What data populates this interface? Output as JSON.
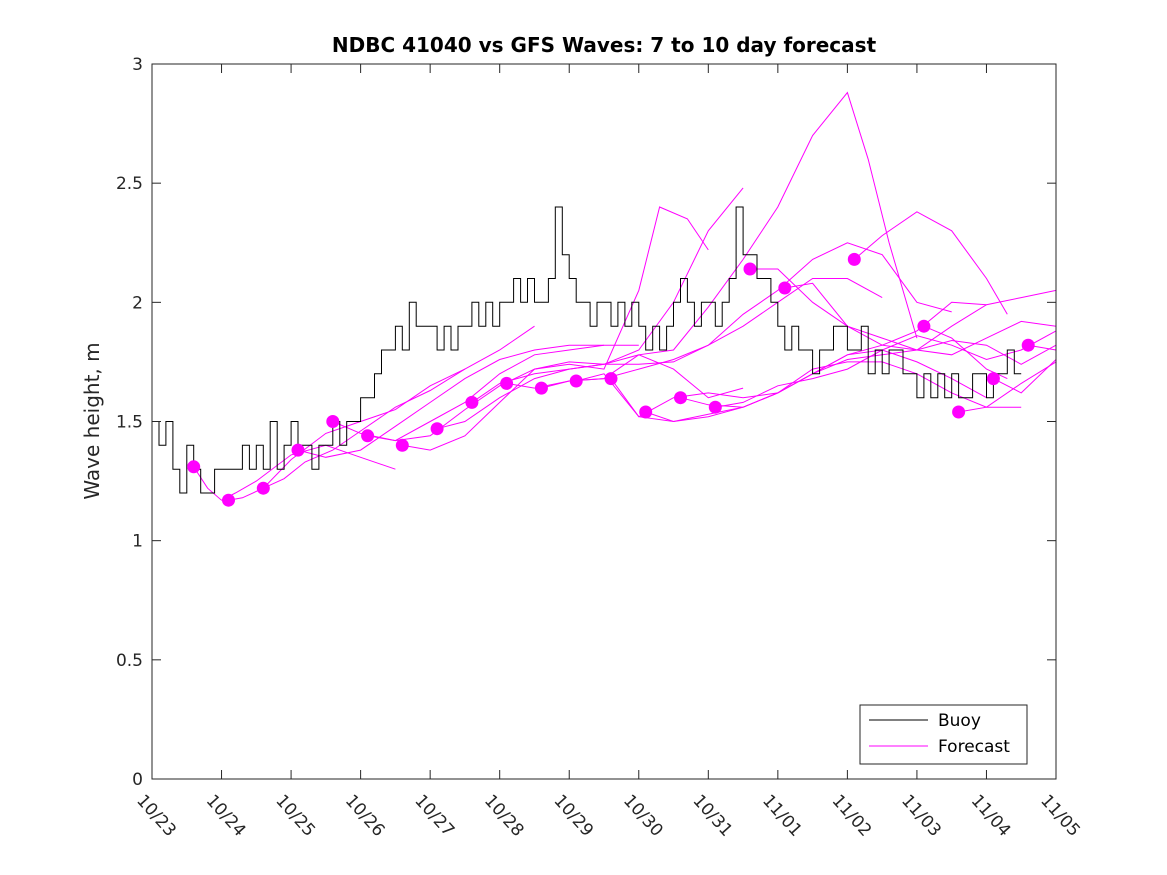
{
  "colors": {
    "buoy": "#000000",
    "forecast": "#ff00ff",
    "axes": "#262626",
    "background": "#ffffff"
  },
  "chart_data": {
    "type": "line",
    "title": "NDBC 41040 vs GFS Waves: 7 to 10 day forecast",
    "xlabel": "",
    "ylabel": "Wave height, m",
    "xlim": [
      0,
      13
    ],
    "ylim": [
      0,
      3
    ],
    "x_units": "days since 10/23",
    "xticks": [
      0,
      1,
      2,
      3,
      4,
      5,
      6,
      7,
      8,
      9,
      10,
      11,
      12,
      13
    ],
    "xtick_labels": [
      "10/23",
      "10/24",
      "10/25",
      "10/26",
      "10/27",
      "10/28",
      "10/29",
      "10/30",
      "10/31",
      "11/01",
      "11/02",
      "11/03",
      "11/04",
      "11/05"
    ],
    "yticks": [
      0,
      0.5,
      1,
      1.5,
      2,
      2.5,
      3
    ],
    "ytick_labels": [
      "0",
      "0.5",
      "1",
      "1.5",
      "2",
      "2.5",
      "3"
    ],
    "grid": false,
    "legend": {
      "location": "bottom-right",
      "entries": [
        "Buoy",
        "Forecast"
      ]
    },
    "series": [
      {
        "name": "Buoy",
        "style": "line",
        "x": [
          0,
          0.1,
          0.2,
          0.3,
          0.4,
          0.5,
          0.6,
          0.7,
          0.8,
          0.9,
          1.0,
          1.1,
          1.2,
          1.3,
          1.4,
          1.5,
          1.6,
          1.7,
          1.8,
          1.9,
          2.0,
          2.1,
          2.2,
          2.3,
          2.4,
          2.5,
          2.6,
          2.7,
          2.8,
          2.9,
          3.0,
          3.1,
          3.2,
          3.3,
          3.4,
          3.5,
          3.6,
          3.7,
          3.8,
          3.9,
          4.0,
          4.1,
          4.2,
          4.3,
          4.4,
          4.5,
          4.6,
          4.7,
          4.8,
          4.9,
          5.0,
          5.1,
          5.2,
          5.3,
          5.4,
          5.5,
          5.6,
          5.7,
          5.8,
          5.9,
          6.0,
          6.1,
          6.2,
          6.3,
          6.4,
          6.5,
          6.6,
          6.7,
          6.8,
          6.9,
          7.0,
          7.1,
          7.2,
          7.3,
          7.4,
          7.5,
          7.6,
          7.7,
          7.8,
          7.9,
          8.0,
          8.1,
          8.2,
          8.3,
          8.4,
          8.5,
          8.6,
          8.7,
          8.8,
          8.9,
          9.0,
          9.1,
          9.2,
          9.3,
          9.4,
          9.5,
          9.6,
          9.7,
          9.8,
          9.9,
          10.0,
          10.1,
          10.2,
          10.3,
          10.4,
          10.5,
          10.6,
          10.7,
          10.8,
          10.9,
          11.0,
          11.1,
          11.2,
          11.3,
          11.4,
          11.5,
          11.6,
          11.7,
          11.8,
          11.9,
          12.0,
          12.1,
          12.2,
          12.3,
          12.4,
          12.5
        ],
        "y": [
          1.5,
          1.5,
          1.4,
          1.5,
          1.3,
          1.2,
          1.4,
          1.3,
          1.2,
          1.2,
          1.3,
          1.3,
          1.3,
          1.3,
          1.4,
          1.3,
          1.4,
          1.3,
          1.5,
          1.3,
          1.4,
          1.5,
          1.4,
          1.4,
          1.3,
          1.4,
          1.4,
          1.5,
          1.4,
          1.5,
          1.5,
          1.6,
          1.6,
          1.7,
          1.8,
          1.8,
          1.9,
          1.8,
          2.0,
          1.9,
          1.9,
          1.9,
          1.8,
          1.9,
          1.8,
          1.9,
          1.9,
          2.0,
          1.9,
          2.0,
          1.9,
          2.0,
          2.0,
          2.1,
          2.0,
          2.1,
          2.0,
          2.0,
          2.1,
          2.4,
          2.2,
          2.1,
          2.0,
          2.0,
          1.9,
          2.0,
          2.0,
          1.9,
          2.0,
          1.9,
          2.0,
          1.9,
          1.8,
          1.9,
          1.8,
          1.9,
          2.0,
          2.1,
          2.0,
          1.9,
          2.0,
          2.0,
          1.9,
          2.0,
          2.1,
          2.4,
          2.2,
          2.2,
          2.1,
          2.1,
          2.0,
          1.9,
          1.8,
          1.9,
          1.8,
          1.8,
          1.7,
          1.8,
          1.8,
          1.9,
          1.9,
          1.8,
          1.8,
          1.9,
          1.7,
          1.8,
          1.7,
          1.8,
          1.8,
          1.7,
          1.7,
          1.6,
          1.7,
          1.6,
          1.7,
          1.6,
          1.7,
          1.6,
          1.6,
          1.7,
          1.7,
          1.6,
          1.7,
          1.7,
          1.8,
          1.7
        ]
      },
      {
        "name": "Forecast",
        "style": "line",
        "x": [
          0.6,
          0.8,
          1.0,
          1.2,
          1.5,
          2.0,
          2.5,
          3.0,
          3.5
        ],
        "y": [
          1.31,
          1.22,
          1.17,
          1.2,
          1.25,
          1.36,
          1.4,
          1.35,
          1.3
        ]
      },
      {
        "name": "Forecast",
        "style": "line",
        "x": [
          1.1,
          1.3,
          1.6,
          2.0,
          2.5,
          3.0,
          3.5,
          4.0,
          4.5
        ],
        "y": [
          1.17,
          1.18,
          1.22,
          1.34,
          1.45,
          1.5,
          1.55,
          1.65,
          1.72
        ]
      },
      {
        "name": "Forecast",
        "style": "line",
        "x": [
          1.6,
          1.9,
          2.2,
          2.6,
          3.0,
          3.5,
          4.0,
          4.5,
          5.0,
          5.5
        ],
        "y": [
          1.22,
          1.26,
          1.33,
          1.38,
          1.46,
          1.56,
          1.63,
          1.72,
          1.8,
          1.9
        ]
      },
      {
        "name": "Forecast",
        "style": "line",
        "x": [
          2.1,
          2.5,
          3.0,
          3.5,
          4.0,
          4.5,
          5.0,
          5.5,
          6.0,
          6.5
        ],
        "y": [
          1.38,
          1.35,
          1.38,
          1.48,
          1.58,
          1.68,
          1.76,
          1.8,
          1.82,
          1.82
        ]
      },
      {
        "name": "Forecast",
        "style": "line",
        "x": [
          2.6,
          3.0,
          3.5,
          4.0,
          4.5,
          5.0,
          5.5,
          6.0,
          6.5,
          7.0
        ],
        "y": [
          1.5,
          1.45,
          1.42,
          1.5,
          1.58,
          1.7,
          1.78,
          1.8,
          1.82,
          1.82
        ]
      },
      {
        "name": "Forecast",
        "style": "line",
        "x": [
          3.1,
          3.5,
          4.0,
          4.5,
          5.0,
          5.5,
          6.0,
          6.5,
          7.0,
          7.5,
          8.0,
          8.5
        ],
        "y": [
          1.44,
          1.42,
          1.44,
          1.55,
          1.65,
          1.72,
          1.75,
          1.74,
          1.8,
          2.0,
          2.3,
          2.48
        ]
      },
      {
        "name": "Forecast",
        "style": "line",
        "x": [
          3.6,
          4.0,
          4.5,
          5.0,
          5.5,
          6.0,
          6.5,
          7.0,
          7.3,
          7.7,
          8.0
        ],
        "y": [
          1.4,
          1.38,
          1.44,
          1.58,
          1.72,
          1.74,
          1.72,
          2.05,
          2.4,
          2.35,
          2.22
        ]
      },
      {
        "name": "Forecast",
        "style": "line",
        "x": [
          4.1,
          4.5,
          5.0,
          5.5,
          6.0,
          6.5,
          7.0,
          7.5,
          8.0,
          8.5
        ],
        "y": [
          1.47,
          1.5,
          1.6,
          1.68,
          1.72,
          1.74,
          1.78,
          1.72,
          1.6,
          1.64
        ]
      },
      {
        "name": "Forecast",
        "style": "line",
        "x": [
          4.6,
          5.0,
          5.5,
          6.0,
          6.5,
          7.0,
          7.5,
          8.0,
          8.5,
          9.0,
          9.5,
          10.0,
          10.5
        ],
        "y": [
          1.58,
          1.66,
          1.7,
          1.72,
          1.74,
          1.74,
          1.75,
          1.82,
          1.9,
          2.0,
          2.1,
          2.1,
          2.02
        ]
      },
      {
        "name": "Forecast",
        "style": "line",
        "x": [
          5.1,
          5.5,
          6.0,
          6.5,
          7.0,
          7.5,
          8.0,
          8.5,
          9.0,
          9.5,
          10.0,
          10.3,
          10.6,
          11.0
        ],
        "y": [
          1.66,
          1.64,
          1.67,
          1.68,
          1.78,
          1.8,
          1.98,
          2.18,
          2.4,
          2.7,
          2.88,
          2.6,
          2.25,
          1.85
        ]
      },
      {
        "name": "Forecast",
        "style": "line",
        "x": [
          5.6,
          6.0,
          6.5,
          7.0,
          7.5,
          8.0,
          8.5,
          9.0,
          9.5,
          10.0,
          10.5,
          11.0,
          11.5
        ],
        "y": [
          1.64,
          1.67,
          1.68,
          1.72,
          1.76,
          1.82,
          1.95,
          2.05,
          2.18,
          2.25,
          2.2,
          2.0,
          1.96
        ]
      },
      {
        "name": "Forecast",
        "style": "line",
        "x": [
          6.1,
          6.5,
          7.0,
          7.5,
          8.0,
          8.5,
          9.0,
          9.5,
          10.0,
          10.5,
          11.0,
          11.5,
          12.0
        ],
        "y": [
          1.67,
          1.7,
          1.52,
          1.5,
          1.52,
          1.56,
          1.62,
          1.7,
          1.78,
          1.82,
          1.88,
          2.0,
          1.99
        ]
      },
      {
        "name": "Forecast",
        "style": "line",
        "x": [
          6.6,
          7.0,
          7.5,
          8.0,
          8.5,
          9.0,
          9.5,
          10.0,
          10.5,
          11.0,
          11.5,
          12.0
        ],
        "y": [
          1.68,
          1.52,
          1.6,
          1.62,
          1.6,
          1.62,
          1.7,
          1.78,
          1.8,
          1.75,
          1.68,
          1.6
        ]
      },
      {
        "name": "Forecast",
        "style": "line",
        "x": [
          7.1,
          7.5,
          8.0,
          8.5,
          9.0,
          9.5,
          10.0,
          10.5,
          11.0,
          11.5,
          12.0,
          12.5,
          13.0
        ],
        "y": [
          1.54,
          1.5,
          1.53,
          1.56,
          1.62,
          1.7,
          1.76,
          1.78,
          1.8,
          1.9,
          1.99,
          2.02,
          2.05
        ]
      },
      {
        "name": "Forecast",
        "style": "line",
        "x": [
          7.6,
          8.0,
          8.5,
          9.0,
          9.5,
          10.0,
          10.5,
          11.0,
          11.5,
          12.0,
          12.5
        ],
        "y": [
          1.6,
          1.57,
          1.56,
          1.62,
          1.72,
          1.75,
          1.75,
          1.7,
          1.62,
          1.56,
          1.56
        ]
      },
      {
        "name": "Forecast",
        "style": "line",
        "x": [
          8.1,
          8.5,
          9.0,
          9.5,
          10.0,
          10.5,
          11.0,
          11.5,
          12.0,
          12.5,
          13.0
        ],
        "y": [
          1.56,
          1.58,
          1.65,
          1.68,
          1.72,
          1.8,
          1.86,
          1.82,
          1.76,
          1.8,
          1.88
        ]
      },
      {
        "name": "Forecast",
        "style": "line",
        "x": [
          8.6,
          9.0,
          9.5,
          10.0,
          10.5,
          11.0,
          11.5,
          12.0,
          12.5,
          13.0
        ],
        "y": [
          2.14,
          2.14,
          2.0,
          1.9,
          1.85,
          1.8,
          1.78,
          1.85,
          1.92,
          1.9
        ]
      },
      {
        "name": "Forecast",
        "style": "line",
        "x": [
          9.1,
          9.5,
          10.0,
          10.5,
          11.0,
          11.5,
          12.0,
          12.5,
          13.0
        ],
        "y": [
          2.06,
          2.08,
          1.9,
          1.82,
          1.8,
          1.84,
          1.82,
          1.74,
          1.82
        ]
      },
      {
        "name": "Forecast",
        "style": "line",
        "x": [
          10.1,
          10.5,
          11.0,
          11.5,
          12.0,
          12.3
        ],
        "y": [
          2.18,
          2.28,
          2.38,
          2.3,
          2.1,
          1.95
        ]
      },
      {
        "name": "Forecast",
        "style": "line",
        "x": [
          11.1,
          11.5,
          12.0,
          12.3
        ],
        "y": [
          1.9,
          1.85,
          1.72,
          1.68
        ]
      },
      {
        "name": "Forecast",
        "style": "line",
        "x": [
          11.6,
          12.0,
          12.5,
          13.0
        ],
        "y": [
          1.54,
          1.56,
          1.66,
          1.75
        ]
      },
      {
        "name": "Forecast",
        "style": "line",
        "x": [
          12.1,
          12.5,
          13.0
        ],
        "y": [
          1.68,
          1.62,
          1.76
        ]
      },
      {
        "name": "Forecast",
        "style": "line",
        "x": [
          12.6,
          13.0
        ],
        "y": [
          1.82,
          1.8
        ]
      },
      {
        "name": "Forecast start",
        "style": "markers",
        "x": [
          0.6,
          1.1,
          1.6,
          2.1,
          2.6,
          3.1,
          3.6,
          4.1,
          4.6,
          5.1,
          5.6,
          6.1,
          6.6,
          7.1,
          7.6,
          8.1,
          8.6,
          9.1,
          10.1,
          11.1,
          11.6,
          12.1,
          12.6
        ],
        "y": [
          1.31,
          1.17,
          1.22,
          1.38,
          1.5,
          1.44,
          1.4,
          1.47,
          1.58,
          1.66,
          1.64,
          1.67,
          1.68,
          1.54,
          1.6,
          1.56,
          2.14,
          2.06,
          2.18,
          1.9,
          1.54,
          1.68,
          1.82
        ]
      }
    ]
  }
}
